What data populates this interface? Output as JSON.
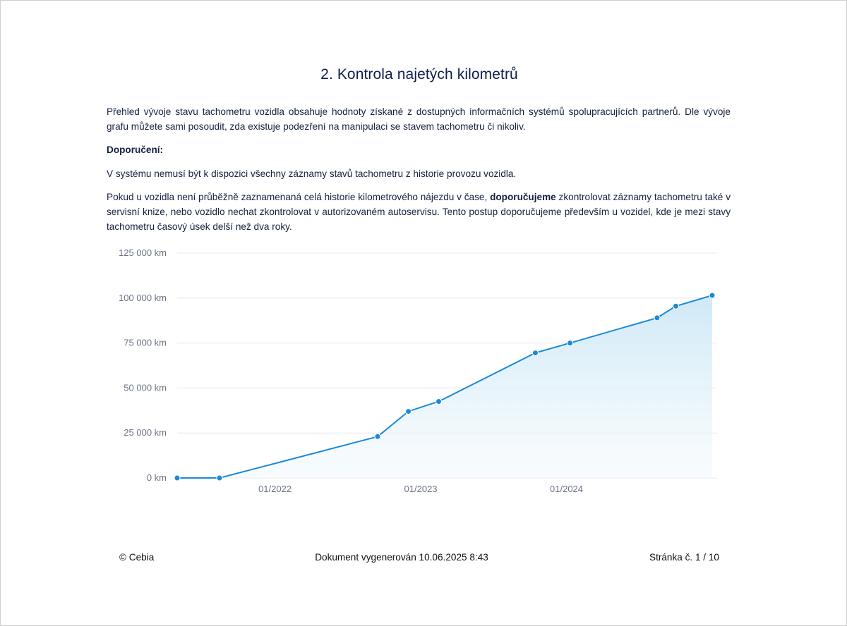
{
  "heading": "2. Kontrola najetých kilometrů",
  "paragraphs": {
    "p1": "Přehled vývoje stavu tachometru vozidla obsahuje hodnoty získané z dostupných informačních systémů spolupracujících partnerů. Dle vývoje grafu můžete sami posoudit, zda existuje podezření na manipulaci se stavem tachometru či nikoliv.",
    "p2": "Doporučení:",
    "p3": "V systému nemusí být k dispozici všechny záznamy stavů tachometru z historie provozu vozidla.",
    "p4_before": "Pokud u vozidla není průběžně zaznamenaná celá historie kilometrového nájezdu v čase, ",
    "p4_bold": "doporučujeme",
    "p4_after": " zkontrolovat záznamy tachometru také v servisní knize, nebo vozidlo nechat zkontrolovat v autorizovaném autoservisu. Tento postup doporučujeme především u vozidel, kde je mezi stavy tachometru časový úsek delší než dva roky."
  },
  "chart_data": {
    "type": "area",
    "y_ticks": [
      "0 km",
      "25 000 km",
      "50 000 km",
      "75 000 km",
      "100 000 km",
      "125 000 km"
    ],
    "ylim": [
      0,
      125000
    ],
    "x_ticks": [
      {
        "date": "2022-01-01",
        "label": "01/2022"
      },
      {
        "date": "2023-01-01",
        "label": "01/2023"
      },
      {
        "date": "2024-01-01",
        "label": "01/2024"
      }
    ],
    "xlim": [
      "2021-05-01",
      "2024-12-31"
    ],
    "grid": true,
    "line_color": "#1a8ad8",
    "points": [
      {
        "date": "2021-05-01",
        "km": 0
      },
      {
        "date": "2021-08-15",
        "km": 0
      },
      {
        "date": "2022-09-15",
        "km": 23000
      },
      {
        "date": "2022-12-01",
        "km": 37000
      },
      {
        "date": "2023-02-15",
        "km": 42500
      },
      {
        "date": "2023-10-15",
        "km": 69500
      },
      {
        "date": "2024-01-10",
        "km": 75000
      },
      {
        "date": "2024-08-15",
        "km": 89000
      },
      {
        "date": "2024-10-01",
        "km": 95500
      },
      {
        "date": "2024-12-31",
        "km": 101500
      }
    ]
  },
  "footer": {
    "copyright": "© Cebia",
    "generated": "Dokument vygenerován 10.06.2025 8:43",
    "page": "Stránka č. 1 / 10"
  }
}
